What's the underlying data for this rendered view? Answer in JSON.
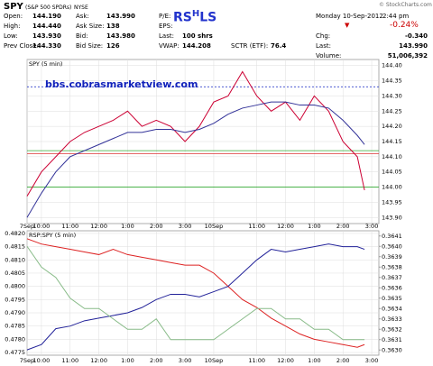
{
  "header": {
    "symbol": "SPY",
    "name": "(S&P 500 SPDRs)",
    "exchange": "NYSE",
    "copyright": "© StockCharts.com",
    "logo": [
      "RS",
      "H",
      "L",
      "S"
    ],
    "date": "Monday 10-Sep-2012",
    "time": "2:44 pm",
    "change_pct": "-0.24%",
    "rows": [
      [
        "Open:",
        "144.190",
        "Ask:",
        "143.990",
        "P/E:",
        ""
      ],
      [
        "High:",
        "144.440",
        "Ask Size:",
        "138",
        "EPS:",
        ""
      ],
      [
        "Low:",
        "143.930",
        "Bid:",
        "143.980",
        "Last:",
        "100 shrs"
      ],
      [
        "Prev Close:",
        "144.330",
        "Bid Size:",
        "126",
        "VWAP:",
        "144.208"
      ]
    ],
    "sctr": [
      "SCTR (ETF):",
      "76.4"
    ],
    "right": [
      [
        "Chg:",
        "-0.340"
      ],
      [
        "Last:",
        "143.990"
      ],
      [
        "Volume:",
        "51,006,392"
      ]
    ]
  },
  "chart_data": [
    {
      "type": "line",
      "title": "SPY (5 min)",
      "annotation": "bbs.cobrasmarketview.com",
      "y_axis_side": "right",
      "x": [
        0,
        6,
        12,
        18,
        24,
        30,
        36,
        42,
        48,
        54,
        60,
        66,
        72,
        78,
        84,
        90,
        96,
        102,
        108,
        114,
        120,
        126,
        132,
        138,
        141
      ],
      "xlim": [
        0,
        147
      ],
      "xticks": [
        {
          "value": 0,
          "label": "7Sep"
        },
        {
          "value": 6,
          "label": "10:00"
        },
        {
          "value": 18,
          "label": "11:00"
        },
        {
          "value": 30,
          "label": "12:00"
        },
        {
          "value": 42,
          "label": "1:00"
        },
        {
          "value": 54,
          "label": "2:00"
        },
        {
          "value": 66,
          "label": "3:00"
        },
        {
          "value": 78,
          "label": "10Sep"
        },
        {
          "value": 96,
          "label": "11:00"
        },
        {
          "value": 108,
          "label": "12:00"
        },
        {
          "value": 120,
          "label": "1:00"
        },
        {
          "value": 132,
          "label": "2:00"
        },
        {
          "value": 144,
          "label": "3:00"
        }
      ],
      "ylim": [
        143.88,
        144.42
      ],
      "yticks": [
        {
          "value": 143.9,
          "label": "143.90"
        },
        143.95,
        {
          "value": 144.0,
          "label": "144.00"
        },
        144.05,
        {
          "value": 144.1,
          "label": "144.10"
        },
        144.15,
        {
          "value": 144.2,
          "label": "144.20"
        },
        144.25,
        {
          "value": 144.3,
          "label": "144.30"
        },
        144.35,
        {
          "value": 144.4,
          "label": "144.40"
        }
      ],
      "grid": true,
      "reference_lines": [
        {
          "value": 144.33,
          "color": "#3344cc",
          "style": "dashed"
        },
        {
          "value": 144.12,
          "color": "#33aa33",
          "style": "solid"
        },
        {
          "value": 144.11,
          "color": "#dd3333",
          "style": "solid"
        },
        {
          "value": 144.0,
          "color": "#33aa33",
          "style": "solid"
        }
      ],
      "series": [
        {
          "color": "#cc0033",
          "values": [
            143.97,
            144.05,
            144.1,
            144.15,
            144.18,
            144.2,
            144.22,
            144.25,
            144.2,
            144.22,
            144.2,
            144.15,
            144.2,
            144.28,
            144.3,
            144.38,
            144.3,
            144.25,
            144.28,
            144.22,
            144.3,
            144.25,
            144.15,
            144.1,
            143.99
          ]
        },
        {
          "color": "#333399",
          "values": [
            143.9,
            143.98,
            144.05,
            144.1,
            144.12,
            144.14,
            144.16,
            144.18,
            144.18,
            144.19,
            144.19,
            144.18,
            144.19,
            144.21,
            144.24,
            144.26,
            144.27,
            144.28,
            144.28,
            144.27,
            144.27,
            144.26,
            144.22,
            144.17,
            144.14
          ]
        }
      ]
    },
    {
      "type": "line",
      "title": "RSP:SPY (5 min)",
      "y_axis_side": "left",
      "x": [
        0,
        6,
        12,
        18,
        24,
        30,
        36,
        42,
        48,
        54,
        60,
        66,
        72,
        78,
        84,
        90,
        96,
        102,
        108,
        114,
        120,
        126,
        132,
        138,
        141
      ],
      "xlim": [
        0,
        147
      ],
      "xticks": [
        {
          "value": 0,
          "label": "7Sep"
        },
        {
          "value": 6,
          "label": "10:00"
        },
        {
          "value": 18,
          "label": "11:00"
        },
        {
          "value": 30,
          "label": "12:00"
        },
        {
          "value": 42,
          "label": "1:00"
        },
        {
          "value": 54,
          "label": "2:00"
        },
        {
          "value": 66,
          "label": "3:00"
        },
        {
          "value": 78,
          "label": "10Sep"
        },
        {
          "value": 96,
          "label": "11:00"
        },
        {
          "value": 108,
          "label": "12:00"
        },
        {
          "value": 120,
          "label": "1:00"
        },
        {
          "value": 132,
          "label": "2:00"
        },
        {
          "value": 144,
          "label": "3:00"
        }
      ],
      "ylim": [
        0.4774,
        0.4821
      ],
      "yticks": [
        0.4775,
        {
          "value": 0.478,
          "label": "0.4780"
        },
        0.4785,
        {
          "value": 0.479,
          "label": "0.4790"
        },
        0.4795,
        {
          "value": 0.48,
          "label": "0.4800"
        },
        0.4805,
        {
          "value": 0.481,
          "label": "0.4810"
        },
        0.4815,
        {
          "value": 0.482,
          "label": "0.4820"
        }
      ],
      "y2lim": [
        0.36295,
        0.36415
      ],
      "y2ticks": [
        {
          "value": 0.363,
          "label": "0.3630"
        },
        0.3631,
        0.3632,
        0.3633,
        0.3634,
        0.3635,
        0.3636,
        0.3637,
        0.3638,
        0.3639,
        {
          "value": 0.364,
          "label": "0.3640"
        },
        0.3641
      ],
      "grid": true,
      "series": [
        {
          "color": "#dd2222",
          "values": [
            0.4818,
            0.4816,
            0.4815,
            0.4814,
            0.4813,
            0.4812,
            0.4814,
            0.4812,
            0.4811,
            0.481,
            0.4809,
            0.4808,
            0.4808,
            0.4805,
            0.48,
            0.4795,
            0.4792,
            0.4788,
            0.4785,
            0.4782,
            0.478,
            0.4779,
            0.4778,
            0.4777,
            0.4778
          ]
        },
        {
          "color": "#222299",
          "values": [
            0.4776,
            0.4778,
            0.4784,
            0.4785,
            0.4787,
            0.4788,
            0.4789,
            0.479,
            0.4792,
            0.4795,
            0.4797,
            0.4797,
            0.4796,
            0.4798,
            0.48,
            0.4805,
            0.481,
            0.4814,
            0.4813,
            0.4814,
            0.4815,
            0.4816,
            0.4815,
            0.4815,
            0.4814
          ]
        },
        {
          "color": "#88bb88",
          "axis": "y2",
          "values": [
            0.364,
            0.3638,
            0.3637,
            0.3635,
            0.3634,
            0.3634,
            0.3633,
            0.3632,
            0.3632,
            0.3633,
            0.3631,
            0.3631,
            0.3631,
            0.3631,
            0.3632,
            0.3633,
            0.3634,
            0.3634,
            0.3633,
            0.3633,
            0.3632,
            0.3632,
            0.3631,
            0.3631,
            0.3631
          ]
        }
      ]
    }
  ]
}
